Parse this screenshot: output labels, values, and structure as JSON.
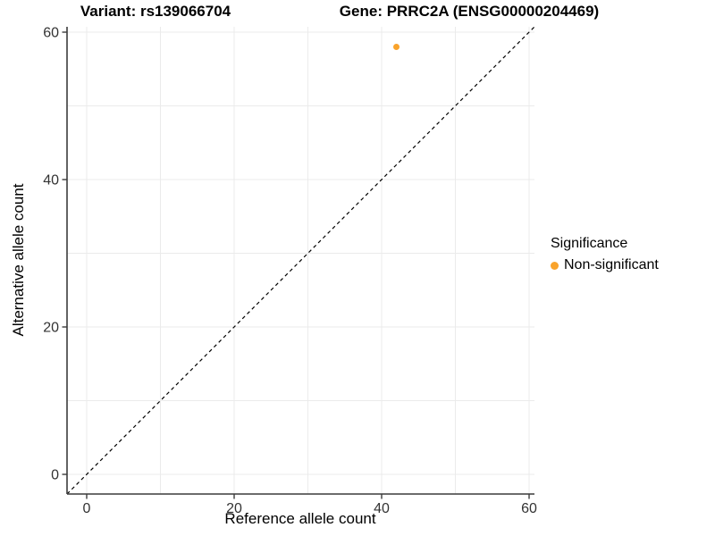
{
  "titles": {
    "variant": "Variant: rs139066704",
    "gene": "Gene: PRRC2A (ENSG00000204469)"
  },
  "chart_data": {
    "type": "scatter",
    "title": "Variant: rs139066704   Gene: PRRC2A (ENSG00000204469)",
    "xlabel": "Reference allele count",
    "ylabel": "Alternative allele count",
    "xlim": [
      -2.7,
      60.7
    ],
    "ylim": [
      -2.7,
      60.7
    ],
    "x_ticks": [
      0,
      20,
      40,
      60
    ],
    "y_ticks": [
      0,
      20,
      40,
      60
    ],
    "grid": true,
    "grid_step": 10,
    "reference_line": {
      "kind": "identity y=x",
      "style": "dashed",
      "color": "#000000"
    },
    "series": [
      {
        "name": "Non-significant",
        "color": "#F9A32B",
        "points": [
          {
            "x": 42,
            "y": 58
          }
        ]
      }
    ],
    "legend": {
      "title": "Significance",
      "position": "right",
      "entries": [
        {
          "label": "Non-significant",
          "color": "#F9A32B",
          "marker": "circle"
        }
      ]
    }
  },
  "colors": {
    "background": "#ffffff",
    "gridline": "#ebebeb",
    "axis_line": "#3c3c3c",
    "tick_text": "#333333",
    "point": "#F9A32B"
  }
}
